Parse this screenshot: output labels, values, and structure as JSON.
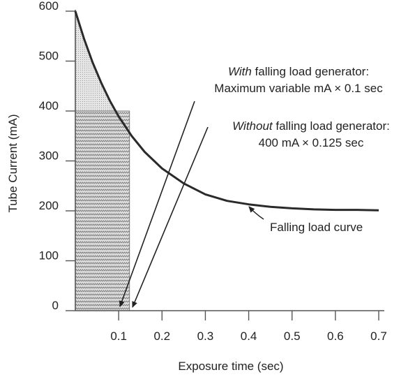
{
  "chart_data": {
    "type": "line",
    "xlabel": "Exposure time (sec)",
    "ylabel": "Tube Current (mA)",
    "xlim": [
      0,
      0.7
    ],
    "ylim": [
      0,
      600
    ],
    "x_ticks": [
      "0.1",
      "0.2",
      "0.3",
      "0.4",
      "0.5",
      "0.6",
      "0.7"
    ],
    "y_ticks": [
      "0",
      "100",
      "200",
      "300",
      "400",
      "500",
      "600"
    ],
    "series": [
      {
        "kind": "curve",
        "x": [
          0,
          0.02,
          0.04,
          0.06,
          0.08,
          0.1,
          0.13,
          0.16,
          0.2,
          0.25,
          0.3,
          0.35,
          0.4,
          0.45,
          0.5,
          0.55,
          0.6,
          0.65,
          0.7
        ],
        "y": [
          600,
          545,
          497,
          456,
          420,
          389,
          350,
          318,
          285,
          255,
          233,
          220,
          213,
          208,
          205,
          203,
          202,
          202,
          201
        ]
      }
    ],
    "regions": [
      {
        "kind": "falling-load-area",
        "x_end": 0.1,
        "note": "area under curve, 0 to 0.1 sec"
      },
      {
        "kind": "fixed-rectangle",
        "x_end": 0.125,
        "y": 400
      }
    ],
    "annotations": {
      "with_italic": "With",
      "with_rest": " falling load generator:",
      "with_line2": "Maximum variable mA × 0.1 sec",
      "without_italic": "Without",
      "without_rest": " falling load generator:",
      "without_line2": "400 mA × 0.125 sec",
      "curve_label": "Falling load curve"
    },
    "colors": {
      "curve": "#2a2a2a",
      "axis": "#555555",
      "rect_fill": "#d6d6d6",
      "area_fill": "#e2e2e2",
      "text": "#222222"
    }
  }
}
